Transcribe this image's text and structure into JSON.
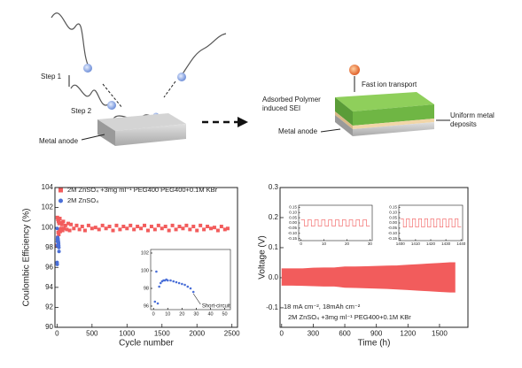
{
  "schematic": {
    "step1": "Step 1",
    "step2": "Step 2",
    "anode_left": "Metal anode",
    "fast_ion": "Fast ion transport",
    "sei": "Adsorbed Polymer induced SEI",
    "anode_right": "Metal anode",
    "uniform": "Uniform metal deposits"
  },
  "chart_data": [
    {
      "type": "scatter",
      "xlabel": "Cycle number",
      "ylabel": "Coulombic Efficiency (%)",
      "xlim": [
        -30,
        2580
      ],
      "ylim": [
        90,
        104
      ],
      "xticks": [
        0,
        500,
        1000,
        1500,
        2000,
        2500
      ],
      "yticks": [
        90,
        92,
        94,
        96,
        98,
        100,
        102,
        104
      ],
      "series": [
        {
          "name": "2M ZnSO₄ +3mg ml⁻¹ PEG400 PEG400+0.1M KBr",
          "color": "#f25c5c",
          "marker": "square",
          "x": [
            2,
            5,
            8,
            12,
            16,
            20,
            25,
            30,
            35,
            40,
            45,
            50,
            60,
            70,
            80,
            90,
            100,
            120,
            140,
            160,
            180,
            200,
            240,
            280,
            320,
            360,
            400,
            450,
            500,
            550,
            600,
            650,
            700,
            750,
            800,
            850,
            900,
            950,
            1000,
            1050,
            1100,
            1150,
            1200,
            1250,
            1300,
            1350,
            1400,
            1450,
            1500,
            1550,
            1600,
            1650,
            1700,
            1750,
            1800,
            1850,
            1900,
            1950,
            2000,
            2050,
            2100,
            2150,
            2200,
            2250,
            2300,
            2350,
            2400,
            2440
          ],
          "values": [
            98.2,
            101.0,
            99.0,
            100.8,
            99.5,
            100.6,
            99.3,
            100.4,
            99.8,
            100.9,
            99.6,
            100.5,
            99.9,
            100.3,
            99.7,
            100.6,
            99.9,
            100.2,
            99.8,
            100.4,
            99.7,
            100.3,
            99.9,
            100.2,
            99.8,
            100.1,
            99.7,
            100.2,
            99.9,
            100.0,
            99.8,
            100.2,
            99.9,
            100.1,
            99.7,
            100.2,
            99.8,
            100.1,
            99.9,
            100.2,
            99.8,
            100.1,
            99.9,
            100.2,
            99.7,
            100.1,
            99.8,
            100.2,
            99.9,
            100.1,
            99.7,
            100.2,
            99.8,
            100.1,
            99.9,
            100.2,
            99.8,
            100.1,
            99.7,
            100.2,
            99.8,
            100.1,
            99.9,
            100.0,
            99.7,
            100.1,
            99.8,
            99.9
          ]
        },
        {
          "name": "2M ZnSO₄",
          "color": "#4a6fd8",
          "marker": "circle",
          "x": [
            1,
            2,
            3,
            4,
            5,
            6,
            7,
            8,
            9,
            10,
            12,
            14,
            16,
            18,
            20,
            22,
            24,
            26,
            28
          ],
          "values": [
            96.5,
            99.9,
            96.3,
            98.2,
            98.6,
            98.8,
            98.9,
            98.9,
            99.0,
            98.9,
            98.9,
            98.8,
            98.7,
            98.6,
            98.5,
            98.4,
            98.2,
            98.0,
            97.6
          ]
        }
      ],
      "inset": {
        "xlim": [
          -2,
          54
        ],
        "ylim": [
          95.6,
          102.4
        ],
        "xticks": [
          0,
          10,
          20,
          30,
          40,
          50
        ],
        "yticks": [
          96,
          98,
          100,
          102
        ],
        "annotation": "Short-circuit"
      }
    },
    {
      "type": "area",
      "xlabel": "Time (h)",
      "ylabel": "Voltage (V)",
      "xlim": [
        -15,
        1770
      ],
      "ylim": [
        -0.165,
        0.3
      ],
      "xticks": [
        0,
        300,
        600,
        900,
        1200,
        1500
      ],
      "yticks": [
        -0.1,
        {
          "value": 0,
          "label": "0.0"
        },
        0.1,
        0.2,
        0.3
      ],
      "color": "#f25c5c",
      "annotations": [
        "18 mA cm⁻², 18mAh cm⁻²",
        "2M ZnSO₄ +3mg ml⁻¹ PEG400+0.1M KBr"
      ],
      "x": [
        0,
        100,
        200,
        300,
        400,
        500,
        600,
        700,
        800,
        900,
        1000,
        1100,
        1200,
        1300,
        1400,
        1500,
        1600,
        1650
      ],
      "series": [
        {
          "values": [
            0.03,
            0.03,
            0.03,
            0.032,
            0.033,
            0.033,
            0.036,
            0.036,
            0.037,
            0.038,
            0.039,
            0.04,
            0.042,
            0.044,
            0.046,
            0.048,
            0.05,
            0.05
          ]
        },
        {
          "values": [
            -0.025,
            -0.025,
            -0.026,
            -0.027,
            -0.028,
            -0.028,
            -0.032,
            -0.033,
            -0.034,
            -0.035,
            -0.036,
            -0.038,
            -0.04,
            -0.042,
            -0.044,
            -0.046,
            -0.048,
            -0.048
          ]
        }
      ],
      "insets": [
        {
          "type": "line",
          "xlim": [
            -1,
            31
          ],
          "ylim": [
            -0.17,
            0.17
          ],
          "xticks": [
            0,
            10,
            20,
            30
          ],
          "yticks": [
            0.15,
            {
              "value": 0.1,
              "label": "0.10"
            },
            0.05,
            {
              "value": 0,
              "label": "0.00"
            },
            -0.05,
            {
              "value": -0.1,
              "label": "-0.10"
            },
            -0.15
          ],
          "x": [
            0,
            1.5,
            1.5,
            3,
            3,
            4.5,
            4.5,
            6,
            6,
            7.5,
            7.5,
            9,
            9,
            10.5,
            10.5,
            12,
            12,
            13.5,
            13.5,
            15,
            15,
            16.5,
            16.5,
            18,
            18,
            19.5,
            19.5,
            21,
            21,
            22.5,
            22.5,
            24,
            24,
            25.5,
            25.5,
            27,
            27,
            28.5,
            28.5,
            30
          ],
          "values": [
            0.03,
            0.03,
            -0.03,
            -0.03,
            0.03,
            0.03,
            -0.03,
            -0.03,
            0.03,
            0.03,
            -0.03,
            -0.03,
            0.03,
            0.03,
            -0.03,
            -0.03,
            0.03,
            0.03,
            -0.03,
            -0.03,
            0.03,
            0.03,
            -0.03,
            -0.03,
            0.03,
            0.03,
            -0.03,
            -0.03,
            0.03,
            0.03,
            -0.03,
            -0.03,
            0.03,
            0.03,
            -0.03,
            -0.03,
            0.03,
            0.03,
            -0.03,
            -0.03
          ]
        },
        {
          "type": "line",
          "xlim": [
            1399,
            1441
          ],
          "ylim": [
            -0.17,
            0.17
          ],
          "xticks": [
            1400,
            1410,
            1420,
            1430,
            1440
          ],
          "yticks": [
            0.15,
            {
              "value": 0.1,
              "label": "0.10"
            },
            0.05,
            {
              "value": 0,
              "label": "0.00"
            },
            -0.05,
            {
              "value": -0.1,
              "label": "-0.10"
            },
            -0.15
          ],
          "x": [
            1400,
            1402,
            1402,
            1404,
            1404,
            1406,
            1406,
            1408,
            1408,
            1410,
            1410,
            1412,
            1412,
            1414,
            1414,
            1416,
            1416,
            1418,
            1418,
            1420,
            1420,
            1422,
            1422,
            1424,
            1424,
            1426,
            1426,
            1428,
            1428,
            1430,
            1430,
            1432,
            1432,
            1434,
            1434,
            1436,
            1436,
            1438,
            1438,
            1440
          ],
          "values": [
            0.04,
            0.04,
            -0.04,
            -0.04,
            0.04,
            0.04,
            -0.04,
            -0.04,
            0.04,
            0.04,
            -0.04,
            -0.04,
            0.04,
            0.04,
            -0.04,
            -0.04,
            0.04,
            0.04,
            -0.04,
            -0.04,
            0.04,
            0.04,
            -0.04,
            -0.04,
            0.04,
            0.04,
            -0.04,
            -0.04,
            0.04,
            0.04,
            -0.04,
            -0.04,
            0.04,
            0.04,
            -0.04,
            -0.04,
            0.04,
            0.04,
            -0.04,
            -0.04
          ]
        }
      ]
    }
  ]
}
